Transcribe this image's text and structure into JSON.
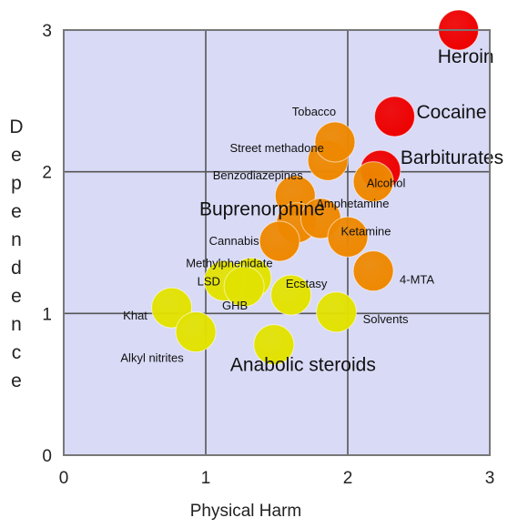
{
  "chart_data": {
    "type": "scatter",
    "title": "",
    "xlabel": "Physical Harm",
    "ylabel": "Dependence",
    "xlim": [
      0,
      3
    ],
    "ylim": [
      0,
      3
    ],
    "xticks": [
      "0",
      "1",
      "2",
      "3"
    ],
    "yticks": [
      "0",
      "1",
      "2",
      "3"
    ],
    "grid": true,
    "plot_background": "#d9daf6",
    "colors": {
      "red": "#ee0000",
      "orange": "#ee8800",
      "yellow": "#e2e200"
    },
    "points": [
      {
        "label": "Heroin",
        "x": 2.78,
        "y": 3.0,
        "color": "red",
        "label_size": "large"
      },
      {
        "label": "Cocaine",
        "x": 2.33,
        "y": 2.39,
        "color": "red",
        "label_size": "large"
      },
      {
        "label": "Barbiturates",
        "x": 2.23,
        "y": 2.01,
        "color": "red",
        "label_size": "large"
      },
      {
        "label": "Street methadone",
        "x": 1.86,
        "y": 2.08,
        "color": "orange",
        "label_size": "small"
      },
      {
        "label": "Alcohol",
        "x": 2.18,
        "y": 1.93,
        "color": "orange",
        "label_size": "small"
      },
      {
        "label": "Tobacco",
        "x": 1.91,
        "y": 2.21,
        "color": "orange",
        "label_size": "small"
      },
      {
        "label": "Benzodiazepines",
        "x": 1.63,
        "y": 1.83,
        "color": "orange",
        "label_size": "small"
      },
      {
        "label": "Buprenorphine",
        "x": 1.64,
        "y": 1.64,
        "color": "orange",
        "label_size": "large"
      },
      {
        "label": "Amphetamine",
        "x": 1.81,
        "y": 1.67,
        "color": "orange",
        "label_size": "small"
      },
      {
        "label": "Cannabis",
        "x": 1.52,
        "y": 1.51,
        "color": "orange",
        "label_size": "small"
      },
      {
        "label": "Ketamine",
        "x": 2.0,
        "y": 1.54,
        "color": "orange",
        "label_size": "small"
      },
      {
        "label": "4-MTA",
        "x": 2.18,
        "y": 1.3,
        "color": "orange",
        "label_size": "small"
      },
      {
        "label": "Methylphenidate",
        "x": 1.32,
        "y": 1.25,
        "color": "yellow",
        "label_size": "small"
      },
      {
        "label": "LSD",
        "x": 1.13,
        "y": 1.23,
        "color": "yellow",
        "label_size": "small"
      },
      {
        "label": "GHB",
        "x": 1.27,
        "y": 1.19,
        "color": "yellow",
        "label_size": "small"
      },
      {
        "label": "Ecstasy",
        "x": 1.6,
        "y": 1.13,
        "color": "yellow",
        "label_size": "small"
      },
      {
        "label": "Khat",
        "x": 0.76,
        "y": 1.04,
        "color": "yellow",
        "label_size": "small"
      },
      {
        "label": "Solvents",
        "x": 1.92,
        "y": 1.01,
        "color": "yellow",
        "label_size": "small"
      },
      {
        "label": "Alkyl nitrites",
        "x": 0.93,
        "y": 0.87,
        "color": "yellow",
        "label_size": "small"
      },
      {
        "label": "Anabolic steroids",
        "x": 1.48,
        "y": 0.78,
        "color": "yellow",
        "label_size": "large"
      }
    ]
  }
}
